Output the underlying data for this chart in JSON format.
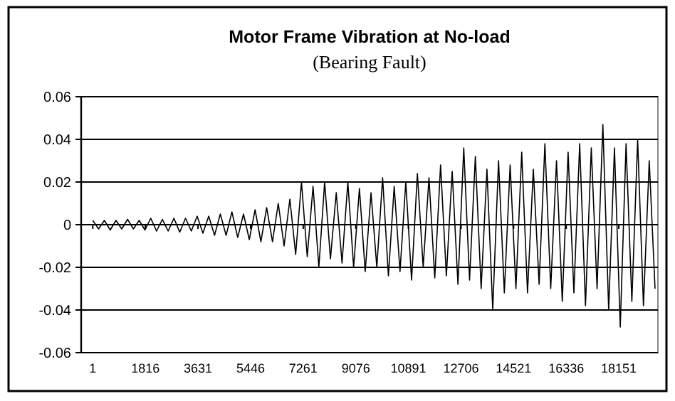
{
  "chart_data": {
    "type": "line",
    "title": "Motor Frame Vibration at No-load",
    "subtitle": "(Bearing Fault)",
    "x": [
      1,
      201,
      401,
      601,
      801,
      1001,
      1201,
      1401,
      1601,
      1801,
      2001,
      2201,
      2401,
      2601,
      2801,
      3001,
      3201,
      3401,
      3601,
      3801,
      4001,
      4201,
      4401,
      4601,
      4801,
      5001,
      5201,
      5401,
      5601,
      5801,
      6001,
      6201,
      6401,
      6601,
      6801,
      7001,
      7201,
      7401,
      7601,
      7801,
      8001,
      8201,
      8401,
      8601,
      8801,
      9001,
      9201,
      9401,
      9601,
      9801,
      10001,
      10201,
      10401,
      10601,
      10801,
      11001,
      11201,
      11401,
      11601,
      11801,
      12001,
      12201,
      12401,
      12601,
      12801,
      13001,
      13201,
      13401,
      13601,
      13801,
      14001,
      14201,
      14401,
      14601,
      14801,
      15001,
      15201,
      15401,
      15601,
      15801,
      16001,
      16201,
      16401,
      16601,
      16801,
      17001,
      17201,
      17401,
      17601,
      17801,
      18001,
      18201,
      18401,
      18601,
      18801,
      19001,
      19201,
      19401
    ],
    "series": [
      {
        "color": "#000000",
        "values": [
          0.002,
          -0.002,
          0.002,
          -0.0025,
          0.002,
          -0.002,
          0.0025,
          -0.002,
          0.002,
          -0.0025,
          0.003,
          -0.003,
          0.0025,
          -0.003,
          0.003,
          -0.0035,
          0.003,
          -0.003,
          0.004,
          -0.004,
          0.004,
          -0.005,
          0.005,
          -0.005,
          0.006,
          -0.006,
          0.005,
          -0.007,
          0.007,
          -0.008,
          0.008,
          -0.008,
          0.01,
          -0.01,
          0.012,
          -0.014,
          0.02,
          -0.015,
          0.018,
          -0.02,
          0.02,
          -0.016,
          0.015,
          -0.018,
          0.02,
          -0.02,
          0.017,
          -0.022,
          0.015,
          -0.02,
          0.022,
          -0.024,
          0.018,
          -0.022,
          0.02,
          -0.026,
          0.024,
          -0.02,
          0.022,
          -0.025,
          0.028,
          -0.024,
          0.025,
          -0.028,
          0.036,
          -0.026,
          0.032,
          -0.03,
          0.026,
          -0.04,
          0.03,
          -0.032,
          0.028,
          -0.03,
          0.034,
          -0.032,
          0.026,
          -0.028,
          0.038,
          -0.03,
          0.03,
          -0.036,
          0.034,
          -0.032,
          0.038,
          -0.038,
          0.036,
          -0.03,
          0.047,
          -0.04,
          0.036,
          -0.048,
          0.038,
          -0.036,
          0.04,
          -0.038,
          0.03,
          -0.03
        ]
      }
    ],
    "xlim": [
      -400,
      19500
    ],
    "xticks": [
      1,
      1816,
      3631,
      5446,
      7261,
      9076,
      10891,
      12706,
      14521,
      16336,
      18151
    ],
    "ylim": [
      -0.06,
      0.06
    ],
    "yticks": [
      -0.06,
      -0.04,
      -0.02,
      0,
      0.02,
      0.04,
      0.06
    ],
    "grid": "y",
    "marker": "none",
    "line_style": "solid"
  }
}
